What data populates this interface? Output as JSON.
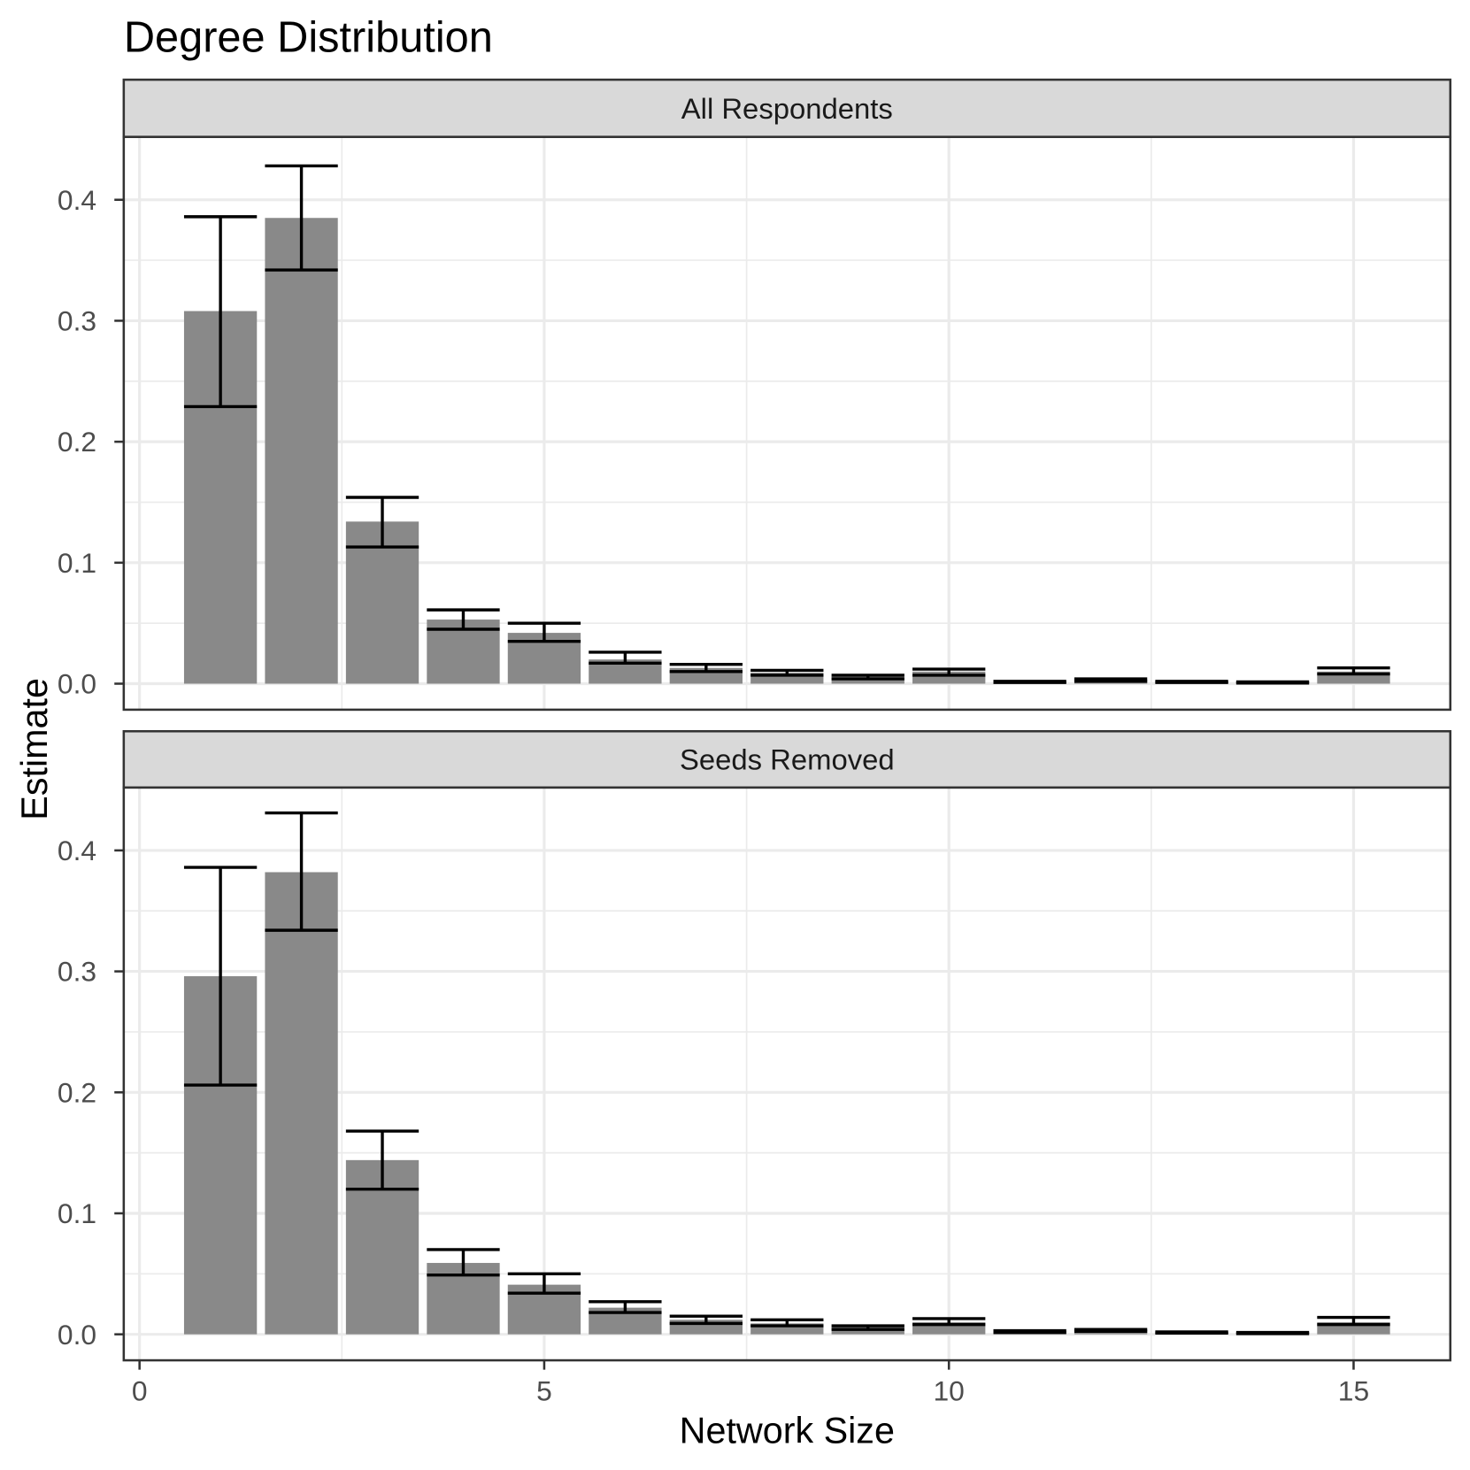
{
  "chart_data": {
    "type": "bar",
    "title": "Degree Distribution",
    "xlabel": "Network Size",
    "ylabel": "Estimate",
    "xlim": [
      -0.195,
      16.195
    ],
    "ylim": [
      -0.0215,
      0.452
    ],
    "x_ticks": [
      0,
      5,
      10,
      15
    ],
    "x_tick_labels": [
      "0",
      "5",
      "10",
      "15"
    ],
    "y_ticks": [
      0,
      0.1,
      0.2,
      0.3,
      0.4
    ],
    "y_tick_labels": [
      "0.0",
      "0.1",
      "0.2",
      "0.3",
      "0.4"
    ],
    "grid": true,
    "colors": {
      "bar": "#898989",
      "errorbar": "#000000",
      "grid": "#ebebeb",
      "border": "#333333",
      "strip": "#d9d9d9",
      "panel": "#ffffff"
    },
    "facets": [
      {
        "label": "All Respondents",
        "x": [
          1,
          2,
          3,
          4,
          5,
          6,
          7,
          8,
          9,
          10,
          11,
          12,
          13,
          14,
          15
        ],
        "values": [
          0.308,
          0.385,
          0.134,
          0.053,
          0.042,
          0.02,
          0.013,
          0.009,
          0.006,
          0.01,
          0.0015,
          0.003,
          0.0015,
          0.001,
          0.01
        ],
        "lower": [
          0.229,
          0.342,
          0.113,
          0.045,
          0.035,
          0.017,
          0.01,
          0.007,
          0.004,
          0.007,
          0.001,
          0.002,
          0.001,
          0.0005,
          0.008
        ],
        "upper": [
          0.386,
          0.428,
          0.154,
          0.061,
          0.05,
          0.026,
          0.016,
          0.011,
          0.007,
          0.012,
          0.002,
          0.004,
          0.002,
          0.0015,
          0.013
        ]
      },
      {
        "label": "Seeds Removed",
        "x": [
          1,
          2,
          3,
          4,
          5,
          6,
          7,
          8,
          9,
          10,
          11,
          12,
          13,
          14,
          15
        ],
        "values": [
          0.296,
          0.382,
          0.144,
          0.059,
          0.041,
          0.022,
          0.012,
          0.009,
          0.006,
          0.01,
          0.002,
          0.003,
          0.0015,
          0.001,
          0.01
        ],
        "lower": [
          0.206,
          0.334,
          0.12,
          0.049,
          0.034,
          0.018,
          0.009,
          0.007,
          0.004,
          0.008,
          0.0015,
          0.0025,
          0.001,
          0.0005,
          0.008
        ],
        "upper": [
          0.386,
          0.431,
          0.168,
          0.07,
          0.05,
          0.027,
          0.015,
          0.012,
          0.007,
          0.013,
          0.003,
          0.004,
          0.002,
          0.0015,
          0.014
        ]
      }
    ]
  }
}
